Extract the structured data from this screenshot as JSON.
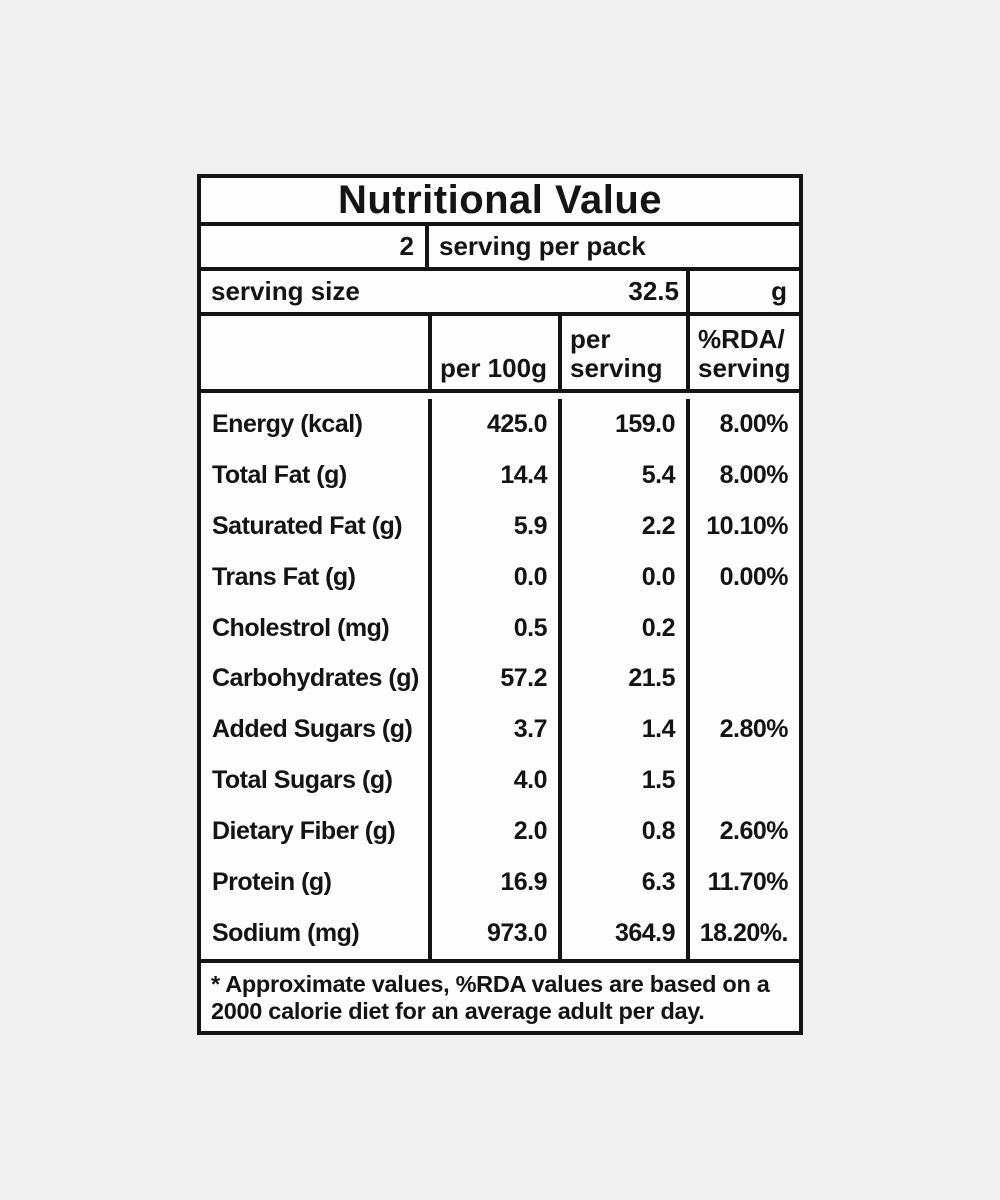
{
  "title": "Nutritional Value",
  "pack": {
    "count": "2",
    "text": "serving per pack"
  },
  "serving_size": {
    "label": "serving size",
    "value": "32.5",
    "unit": "g"
  },
  "columns": {
    "per_100g": "per 100g",
    "per_serving": "per\nserving",
    "rda": "%RDA/\nserving"
  },
  "rows": [
    {
      "label": "Energy (kcal)",
      "per_100g": "425.0",
      "per_serving": "159.0",
      "rda": "8.00%"
    },
    {
      "label": "Total Fat (g)",
      "per_100g": "14.4",
      "per_serving": "5.4",
      "rda": "8.00%"
    },
    {
      "label": "Saturated Fat (g)",
      "per_100g": "5.9",
      "per_serving": "2.2",
      "rda": "10.10%"
    },
    {
      "label": "Trans Fat (g)",
      "per_100g": "0.0",
      "per_serving": "0.0",
      "rda": "0.00%"
    },
    {
      "label": "Cholestrol (mg)",
      "per_100g": "0.5",
      "per_serving": "0.2",
      "rda": ""
    },
    {
      "label": "Carbohydrates (g)",
      "per_100g": "57.2",
      "per_serving": "21.5",
      "rda": ""
    },
    {
      "label": "Added Sugars (g)",
      "per_100g": "3.7",
      "per_serving": "1.4",
      "rda": "2.80%"
    },
    {
      "label": "Total Sugars (g)",
      "per_100g": "4.0",
      "per_serving": "1.5",
      "rda": ""
    },
    {
      "label": "Dietary Fiber (g)",
      "per_100g": "2.0",
      "per_serving": "0.8",
      "rda": "2.60%"
    },
    {
      "label": "Protein (g)",
      "per_100g": "16.9",
      "per_serving": "6.3",
      "rda": "11.70%"
    },
    {
      "label": "Sodium (mg)",
      "per_100g": "973.0",
      "per_serving": "364.9",
      "rda": "18.20%."
    }
  ],
  "footnote": "* Approximate values, %RDA values are based on a\n2000 calorie diet for an average adult per day.",
  "colors": {
    "page_bg": "#f0f0f0",
    "card_bg": "#fdfdfd",
    "line": "#141414",
    "text": "#141414"
  }
}
